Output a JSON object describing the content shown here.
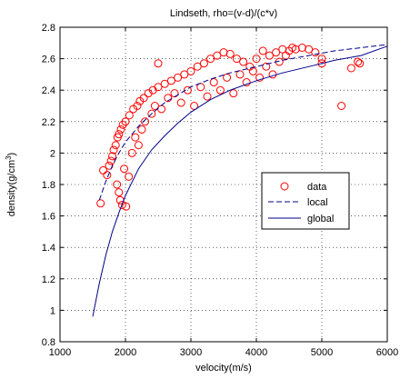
{
  "chart_data": {
    "type": "scatter",
    "title": "Lindseth, rho=(v-d)/(c*v)",
    "xlabel": "velocity(m/s)",
    "ylabel_main": "density(g/cm",
    "ylabel_sup": "3",
    "ylabel_end": ")",
    "xlim": [
      1000,
      6000
    ],
    "ylim": [
      0.8,
      2.8
    ],
    "x_ticks": [
      1000,
      2000,
      3000,
      4000,
      5000,
      6000
    ],
    "y_ticks": [
      0.8,
      1,
      1.2,
      1.4,
      1.6,
      1.8,
      2,
      2.2,
      2.4,
      2.6,
      2.8
    ],
    "x_tick_labels": [
      "1000",
      "2000",
      "3000",
      "4000",
      "5000",
      "6000"
    ],
    "y_tick_labels": [
      "0.8",
      "1",
      "1.2",
      "1.4",
      "1.6",
      "1.8",
      "2",
      "2.2",
      "2.4",
      "2.6",
      "2.8"
    ],
    "grid": true,
    "legend_position": "center-right",
    "legend": [
      {
        "label": "data",
        "style": "circle",
        "color": "#ff0000"
      },
      {
        "label": "local",
        "style": "dashed",
        "color": "#00008b"
      },
      {
        "label": "global",
        "style": "solid",
        "color": "#00008b"
      }
    ],
    "series": [
      {
        "name": "data",
        "kind": "scatter",
        "color": "#ff0000",
        "points": [
          [
            1620,
            1.68
          ],
          [
            1660,
            1.89
          ],
          [
            1720,
            1.86
          ],
          [
            1750,
            1.92
          ],
          [
            1780,
            1.95
          ],
          [
            1800,
            1.98
          ],
          [
            1820,
            2.02
          ],
          [
            1850,
            2.05
          ],
          [
            1870,
            1.8
          ],
          [
            1880,
            2.1
          ],
          [
            1900,
            1.75
          ],
          [
            1900,
            2.12
          ],
          [
            1920,
            1.7
          ],
          [
            1930,
            2.15
          ],
          [
            1950,
            1.67
          ],
          [
            1960,
            2.18
          ],
          [
            1980,
            1.9
          ],
          [
            2000,
            2.2
          ],
          [
            2010,
            1.66
          ],
          [
            2050,
            1.85
          ],
          [
            2060,
            2.24
          ],
          [
            2100,
            2.0
          ],
          [
            2120,
            2.28
          ],
          [
            2150,
            2.1
          ],
          [
            2180,
            2.3
          ],
          [
            2200,
            2.05
          ],
          [
            2220,
            2.33
          ],
          [
            2250,
            2.15
          ],
          [
            2280,
            2.35
          ],
          [
            2300,
            2.2
          ],
          [
            2350,
            2.38
          ],
          [
            2400,
            2.25
          ],
          [
            2420,
            2.4
          ],
          [
            2450,
            2.3
          ],
          [
            2500,
            2.57
          ],
          [
            2500,
            2.42
          ],
          [
            2550,
            2.28
          ],
          [
            2600,
            2.44
          ],
          [
            2650,
            2.35
          ],
          [
            2700,
            2.46
          ],
          [
            2750,
            2.38
          ],
          [
            2800,
            2.48
          ],
          [
            2850,
            2.32
          ],
          [
            2900,
            2.5
          ],
          [
            2950,
            2.4
          ],
          [
            3000,
            2.52
          ],
          [
            3050,
            2.3
          ],
          [
            3100,
            2.55
          ],
          [
            3150,
            2.42
          ],
          [
            3200,
            2.57
          ],
          [
            3250,
            2.36
          ],
          [
            3300,
            2.6
          ],
          [
            3350,
            2.45
          ],
          [
            3400,
            2.62
          ],
          [
            3450,
            2.4
          ],
          [
            3500,
            2.64
          ],
          [
            3550,
            2.48
          ],
          [
            3600,
            2.63
          ],
          [
            3650,
            2.38
          ],
          [
            3700,
            2.6
          ],
          [
            3750,
            2.5
          ],
          [
            3800,
            2.58
          ],
          [
            3850,
            2.45
          ],
          [
            3900,
            2.55
          ],
          [
            3950,
            2.52
          ],
          [
            4000,
            2.6
          ],
          [
            4050,
            2.48
          ],
          [
            4100,
            2.65
          ],
          [
            4150,
            2.55
          ],
          [
            4200,
            2.62
          ],
          [
            4250,
            2.5
          ],
          [
            4300,
            2.64
          ],
          [
            4350,
            2.58
          ],
          [
            4400,
            2.66
          ],
          [
            4450,
            2.62
          ],
          [
            4500,
            2.65
          ],
          [
            4550,
            2.67
          ],
          [
            4600,
            2.66
          ],
          [
            4700,
            2.67
          ],
          [
            4800,
            2.66
          ],
          [
            4900,
            2.64
          ],
          [
            5000,
            2.6
          ],
          [
            5000,
            2.57
          ],
          [
            5300,
            2.3
          ],
          [
            5450,
            2.54
          ],
          [
            5550,
            2.58
          ],
          [
            5580,
            2.57
          ]
        ]
      },
      {
        "name": "local",
        "kind": "line",
        "style": "dashed",
        "color": "#00008b",
        "x": [
          1600,
          1700,
          1800,
          1900,
          2000,
          2200,
          2400,
          2600,
          2800,
          3000,
          3300,
          3600,
          4000,
          4400,
          4800,
          5200,
          5600,
          6000
        ],
        "y": [
          1.7,
          1.82,
          1.92,
          2.0,
          2.07,
          2.17,
          2.25,
          2.32,
          2.37,
          2.42,
          2.47,
          2.51,
          2.55,
          2.59,
          2.62,
          2.65,
          2.67,
          2.69
        ]
      },
      {
        "name": "global",
        "kind": "line",
        "style": "solid",
        "color": "#00008b",
        "x": [
          1500,
          1600,
          1700,
          1800,
          1900,
          2000,
          2200,
          2400,
          2600,
          2800,
          3000,
          3300,
          3600,
          4000,
          4400,
          4800,
          5200,
          5600,
          6000
        ],
        "y": [
          0.96,
          1.17,
          1.35,
          1.5,
          1.62,
          1.73,
          1.9,
          2.02,
          2.11,
          2.19,
          2.26,
          2.34,
          2.4,
          2.46,
          2.51,
          2.55,
          2.59,
          2.62,
          2.68
        ]
      }
    ]
  }
}
